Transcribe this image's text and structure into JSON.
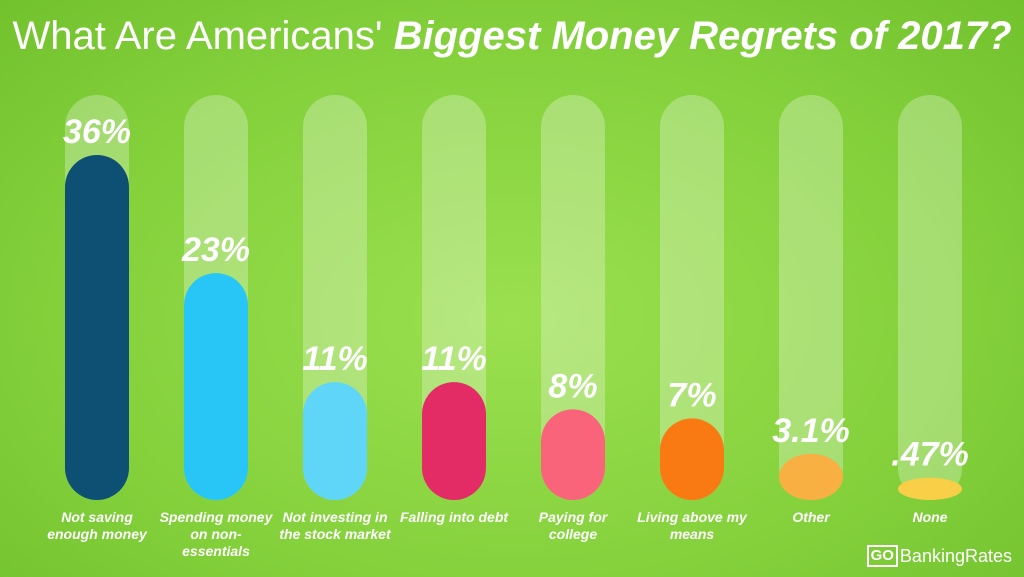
{
  "chart_data": {
    "type": "bar",
    "title": "What Are Americans'",
    "title_emphasis": "Biggest Money Regrets of 2017?",
    "categories": [
      "Not saving enough money",
      "Spending money on non-essentials",
      "Not investing in the stock market",
      "Falling into debt",
      "Paying for college",
      "Living above my means",
      "Other",
      "None"
    ],
    "values": [
      36,
      23,
      11,
      11,
      8,
      7,
      3.1,
      0.47
    ],
    "value_labels": [
      "36%",
      "23%",
      "11%",
      "11%",
      "8%",
      "7%",
      "3.1%",
      ".47%"
    ],
    "colors": [
      "#0d5073",
      "#27c6f7",
      "#5fd6f7",
      "#e32b66",
      "#f9647a",
      "#f97a12",
      "#f9b042",
      "#f9cf47"
    ]
  },
  "logo": {
    "go": "GO",
    "name": "BankingRates"
  }
}
